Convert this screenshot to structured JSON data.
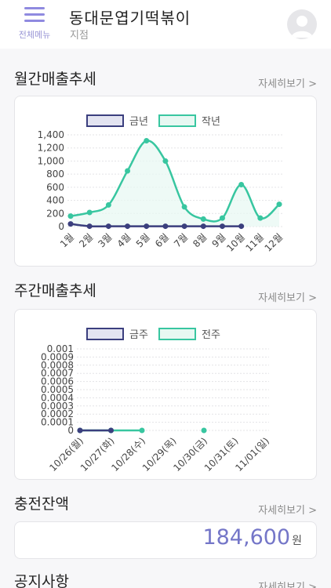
{
  "header": {
    "menu_label": "전체메뉴",
    "store_name": "동대문엽기떡볶이",
    "branch": "지점",
    "menu_icon": "hamburger-icon",
    "avatar_icon": "user-avatar-icon"
  },
  "monthly": {
    "title": "월간매출추세",
    "more": "자세히보기 >"
  },
  "weekly": {
    "title": "주간매출추세",
    "more": "자세히보기 >"
  },
  "balance": {
    "title": "충전잔액",
    "more": "자세히보기 >",
    "value": "184,600",
    "unit": "원"
  },
  "notice": {
    "title": "공지사항",
    "more": "자세히보기 >"
  },
  "colors": {
    "current": "#3b3f7e",
    "previous": "#38c6a0",
    "previous_fill": "#e7f8f2",
    "current_fill": "#e3e4f1",
    "accent": "#7476c8"
  },
  "chart_data": [
    {
      "type": "line",
      "categories": [
        "1월",
        "2월",
        "3월",
        "4월",
        "5월",
        "6월",
        "7월",
        "8월",
        "9월",
        "10월",
        "11월",
        "12월"
      ],
      "series": [
        {
          "name": "금년",
          "values": [
            40,
            5,
            5,
            5,
            5,
            5,
            5,
            5,
            5,
            5,
            null,
            null
          ]
        },
        {
          "name": "작년",
          "values": [
            160,
            215,
            330,
            850,
            1310,
            1000,
            300,
            115,
            130,
            640,
            130,
            340
          ]
        }
      ],
      "yticks": [
        "1,400",
        "1,200",
        "1,000",
        "800",
        "600",
        "400",
        "200",
        "0"
      ],
      "ylim": [
        0,
        1400
      ],
      "legend": "top",
      "grid": true
    },
    {
      "type": "line",
      "categories": [
        "10/26(월)",
        "10/27(화)",
        "10/28(수)",
        "10/29(목)",
        "10/30(금)",
        "10/31(토)",
        "11/01(일)"
      ],
      "series": [
        {
          "name": "금주",
          "values": [
            0,
            0,
            null,
            null,
            null,
            null,
            null
          ]
        },
        {
          "name": "전주",
          "values": [
            0,
            0,
            0,
            null,
            0,
            null,
            null
          ]
        }
      ],
      "yticks": [
        "0.001",
        "0.0009",
        "0.0008",
        "0.0007",
        "0.0006",
        "0.0005",
        "0.0004",
        "0.0003",
        "0.0002",
        "0.0001",
        "0"
      ],
      "ylim": [
        0,
        0.001
      ],
      "legend": "top",
      "grid": true
    }
  ]
}
